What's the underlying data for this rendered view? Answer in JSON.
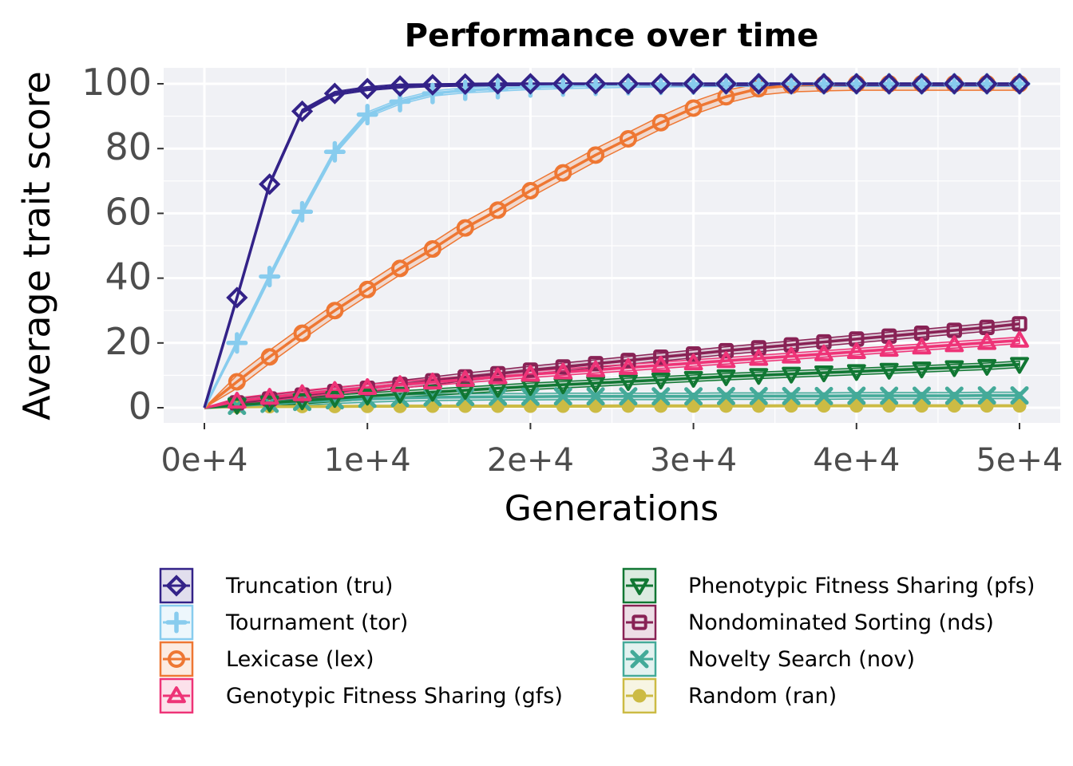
{
  "chart_data": {
    "type": "line",
    "title": "Performance over time",
    "xlabel": "Generations",
    "ylabel": "Average trait score",
    "xlim": [
      -5000,
      52500
    ],
    "ylim": [
      -4,
      104
    ],
    "x_ticks": [
      0,
      10000,
      20000,
      30000,
      40000,
      50000
    ],
    "x_tick_labels": [
      "0e+4",
      "1e+4",
      "2e+4",
      "3e+4",
      "4e+4",
      "5e+4"
    ],
    "y_ticks": [
      0,
      20,
      40,
      60,
      80,
      100
    ],
    "y_tick_labels": [
      "0",
      "20",
      "40",
      "60",
      "80",
      "100"
    ],
    "grid": true,
    "legend_position": "bottom",
    "x": [
      0,
      2000,
      4000,
      6000,
      8000,
      10000,
      12000,
      14000,
      16000,
      18000,
      20000,
      22000,
      24000,
      26000,
      28000,
      30000,
      32000,
      34000,
      36000,
      38000,
      40000,
      42000,
      44000,
      46000,
      48000,
      50000
    ],
    "series": [
      {
        "name": "Truncation (tru)",
        "marker": "diamond",
        "color": "#332288",
        "ci": 0.6,
        "values": [
          0,
          34,
          69,
          91.5,
          97,
          98.5,
          99.3,
          99.7,
          99.9,
          100,
          100,
          100,
          100,
          100,
          100,
          100,
          100,
          100,
          100,
          100,
          100,
          100,
          100,
          100,
          100,
          100
        ]
      },
      {
        "name": "Tournament (tor)",
        "marker": "plus",
        "color": "#88CCEE",
        "ci": 0.8,
        "values": [
          0,
          20,
          40.5,
          60.5,
          79,
          90.5,
          94.5,
          97,
          98,
          98.5,
          99,
          99.3,
          99.5,
          99.7,
          99.8,
          99.9,
          100,
          100,
          100,
          100,
          100,
          100,
          100,
          100,
          100,
          100
        ]
      },
      {
        "name": "Lexicase (lex)",
        "marker": "circle",
        "color": "#EE7733",
        "ci": 2.0,
        "values": [
          0,
          8,
          15.7,
          23,
          30,
          36.5,
          43,
          49,
          55.5,
          61,
          67,
          72.5,
          78,
          83,
          88,
          92.5,
          96,
          98.5,
          99.5,
          99.8,
          100,
          100,
          100,
          100,
          100,
          100
        ]
      },
      {
        "name": "Genotypic Fitness Sharing (gfs)",
        "marker": "triangle-up",
        "color": "#EE3377",
        "ci": 1.0,
        "values": [
          0,
          2,
          3.2,
          4.3,
          5.3,
          6.2,
          7.1,
          7.9,
          8.7,
          9.5,
          10.3,
          11,
          11.7,
          12.4,
          13.1,
          13.8,
          14.5,
          15.2,
          15.9,
          16.6,
          17.3,
          18,
          18.7,
          19.4,
          20.1,
          20.8
        ]
      },
      {
        "name": "Phenotypic Fitness Sharing (pfs)",
        "marker": "triangle-down",
        "color": "#117733",
        "ci": 1.0,
        "values": [
          0,
          0.8,
          1.5,
          2.2,
          2.9,
          3.6,
          4.2,
          4.8,
          5.4,
          6,
          6.6,
          7.1,
          7.6,
          8.1,
          8.6,
          9.1,
          9.6,
          10,
          10.4,
          10.8,
          11.2,
          11.6,
          12,
          12.4,
          12.8,
          13.4
        ]
      },
      {
        "name": "Nondominated Sorting (nds)",
        "marker": "square",
        "color": "#882255",
        "ci": 1.2,
        "values": [
          0,
          1.5,
          2.7,
          3.9,
          5,
          6,
          7.2,
          8.3,
          9.5,
          10.5,
          11.6,
          12.6,
          13.6,
          14.6,
          15.6,
          16.6,
          17.6,
          18.5,
          19.4,
          20.3,
          21.2,
          22.1,
          23,
          23.9,
          24.8,
          25.9
        ]
      },
      {
        "name": "Novelty Search (nov)",
        "marker": "x",
        "color": "#44AA99",
        "ci": 1.0,
        "values": [
          0,
          0.6,
          1.2,
          1.8,
          2.3,
          2.7,
          3,
          3.2,
          3.3,
          3.4,
          3.4,
          3.5,
          3.5,
          3.5,
          3.5,
          3.5,
          3.6,
          3.6,
          3.6,
          3.6,
          3.7,
          3.7,
          3.7,
          3.7,
          3.8,
          3.8
        ]
      },
      {
        "name": "Random (ran)",
        "marker": "filled-circle",
        "color": "#CCBB44",
        "ci": 0.3,
        "values": [
          0,
          0.3,
          0.35,
          0.4,
          0.4,
          0.45,
          0.45,
          0.5,
          0.5,
          0.5,
          0.5,
          0.5,
          0.5,
          0.55,
          0.55,
          0.55,
          0.55,
          0.55,
          0.6,
          0.6,
          0.6,
          0.6,
          0.6,
          0.6,
          0.6,
          0.6
        ]
      }
    ]
  }
}
